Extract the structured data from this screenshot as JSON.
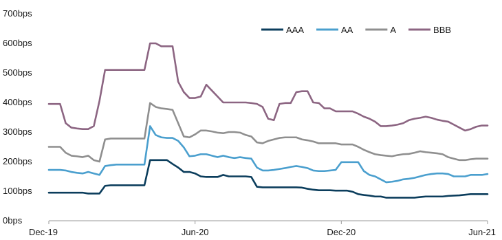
{
  "chart_data": {
    "type": "line",
    "title": "",
    "xlabel": "",
    "ylabel": "",
    "x_tick_labels": [
      "Dec-19",
      "Jun-20",
      "Dec-20",
      "Jun-21"
    ],
    "x_tick_positions": [
      0,
      26,
      52,
      78
    ],
    "ylim": [
      0,
      700
    ],
    "y_ticks": [
      0,
      100,
      200,
      300,
      400,
      500,
      600,
      700
    ],
    "y_tick_labels": [
      "0bps",
      "100bps",
      "200bps",
      "300bps",
      "400bps",
      "500bps",
      "600bps",
      "700bps"
    ],
    "grid": false,
    "legend_position": "top-right",
    "x": [
      0,
      1,
      2,
      3,
      4,
      5,
      6,
      7,
      8,
      9,
      10,
      11,
      12,
      13,
      14,
      15,
      16,
      17,
      18,
      19,
      20,
      21,
      22,
      23,
      24,
      25,
      26,
      27,
      28,
      29,
      30,
      31,
      32,
      33,
      34,
      35,
      36,
      37,
      38,
      39,
      40,
      41,
      42,
      43,
      44,
      45,
      46,
      47,
      48,
      49,
      50,
      51,
      52,
      53,
      54,
      55,
      56,
      57,
      58,
      59,
      60,
      61,
      62,
      63,
      64,
      65,
      66,
      67,
      68,
      69,
      70,
      71,
      72,
      73,
      74,
      75,
      76,
      77,
      78
    ],
    "series": [
      {
        "name": "AAA",
        "color": "#0b3d5c",
        "values": [
          95,
          95,
          95,
          95,
          95,
          95,
          95,
          92,
          92,
          92,
          118,
          120,
          120,
          120,
          120,
          120,
          120,
          120,
          205,
          205,
          205,
          205,
          192,
          180,
          165,
          165,
          160,
          150,
          148,
          148,
          148,
          155,
          150,
          150,
          150,
          150,
          148,
          115,
          113,
          113,
          113,
          113,
          113,
          113,
          113,
          112,
          108,
          105,
          103,
          103,
          103,
          102,
          102,
          102,
          98,
          90,
          87,
          85,
          82,
          82,
          78,
          78,
          78,
          78,
          78,
          78,
          80,
          82,
          82,
          82,
          82,
          84,
          85,
          86,
          88,
          90,
          90,
          90,
          90
        ]
      },
      {
        "name": "AA",
        "color": "#4a9fce",
        "values": [
          172,
          172,
          172,
          170,
          165,
          162,
          160,
          165,
          160,
          155,
          185,
          188,
          190,
          190,
          190,
          190,
          190,
          190,
          320,
          290,
          282,
          280,
          280,
          270,
          248,
          218,
          220,
          225,
          225,
          220,
          215,
          220,
          215,
          212,
          215,
          212,
          210,
          180,
          170,
          170,
          172,
          175,
          178,
          182,
          185,
          182,
          178,
          170,
          168,
          168,
          170,
          172,
          198,
          198,
          198,
          198,
          168,
          155,
          150,
          140,
          130,
          132,
          135,
          140,
          142,
          145,
          150,
          155,
          158,
          160,
          160,
          158,
          150,
          150,
          150,
          155,
          155,
          155,
          158
        ]
      },
      {
        "name": "A",
        "color": "#8f8f8f",
        "values": [
          250,
          250,
          250,
          230,
          220,
          218,
          215,
          220,
          205,
          200,
          275,
          278,
          278,
          278,
          278,
          278,
          278,
          278,
          398,
          385,
          380,
          378,
          375,
          330,
          285,
          282,
          292,
          305,
          305,
          302,
          298,
          296,
          300,
          300,
          298,
          290,
          285,
          265,
          262,
          270,
          275,
          280,
          282,
          282,
          282,
          275,
          272,
          268,
          262,
          262,
          262,
          262,
          258,
          258,
          258,
          250,
          240,
          232,
          225,
          222,
          220,
          218,
          222,
          225,
          226,
          230,
          235,
          232,
          230,
          228,
          225,
          215,
          210,
          205,
          205,
          208,
          210,
          210,
          210
        ]
      },
      {
        "name": "BBB",
        "color": "#8c6582",
        "values": [
          395,
          395,
          395,
          330,
          315,
          312,
          310,
          310,
          320,
          405,
          510,
          510,
          510,
          510,
          510,
          510,
          510,
          510,
          600,
          600,
          590,
          590,
          590,
          470,
          435,
          415,
          415,
          420,
          460,
          440,
          420,
          400,
          400,
          400,
          400,
          400,
          398,
          395,
          385,
          345,
          340,
          395,
          398,
          398,
          435,
          438,
          438,
          400,
          398,
          380,
          380,
          370,
          370,
          370,
          370,
          362,
          352,
          345,
          335,
          320,
          320,
          322,
          325,
          330,
          340,
          345,
          348,
          352,
          348,
          342,
          338,
          335,
          325,
          315,
          305,
          310,
          318,
          322,
          322
        ]
      }
    ]
  }
}
